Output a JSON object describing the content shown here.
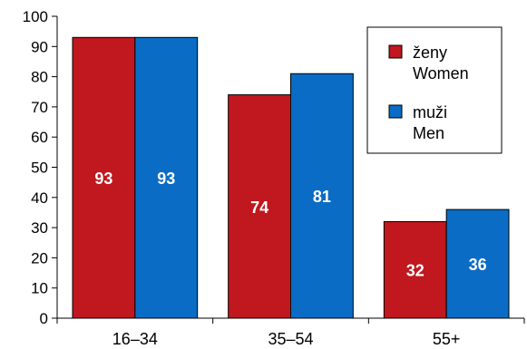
{
  "chart_data": {
    "type": "bar",
    "categories": [
      "16–34",
      "35–54",
      "55+"
    ],
    "series": [
      {
        "name_lines": [
          "ženy",
          "Women"
        ],
        "color": "#c0181e",
        "values": [
          93,
          74,
          32
        ]
      },
      {
        "name_lines": [
          "muži",
          "Men"
        ],
        "color": "#0a6cc4",
        "values": [
          93,
          81,
          36
        ]
      }
    ],
    "data_labels": [
      [
        "93",
        "74",
        "32"
      ],
      [
        "93",
        "81",
        "36"
      ]
    ],
    "ylim": [
      0,
      100
    ],
    "yticks": [
      0,
      10,
      20,
      30,
      40,
      50,
      60,
      70,
      80,
      90,
      100
    ],
    "grid": false,
    "legend_position": "top-right"
  }
}
